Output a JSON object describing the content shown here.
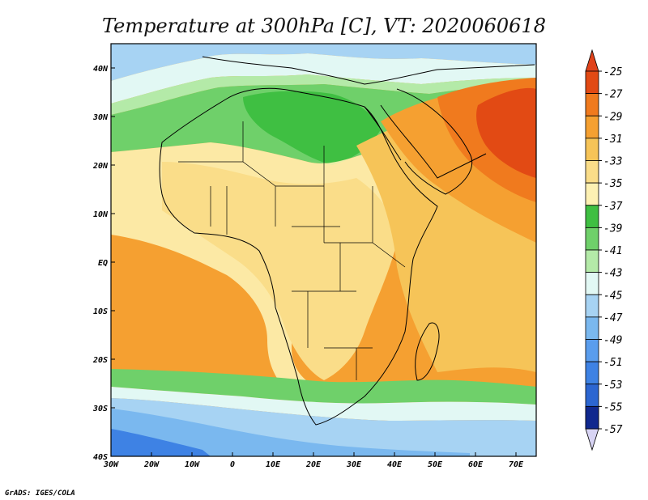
{
  "title": "Temperature at 300hPa [C], VT: 2020060618",
  "credit": "GrADS: IGES/COLA",
  "map": {
    "lon_range": [
      -30,
      75
    ],
    "lat_range": [
      -40,
      45
    ],
    "x_ticks": [
      {
        "value": -30,
        "label": "30W"
      },
      {
        "value": -20,
        "label": "20W"
      },
      {
        "value": -10,
        "label": "10W"
      },
      {
        "value": 0,
        "label": "0"
      },
      {
        "value": 10,
        "label": "10E"
      },
      {
        "value": 20,
        "label": "20E"
      },
      {
        "value": 30,
        "label": "30E"
      },
      {
        "value": 40,
        "label": "40E"
      },
      {
        "value": 50,
        "label": "50E"
      },
      {
        "value": 60,
        "label": "60E"
      },
      {
        "value": 70,
        "label": "70E"
      }
    ],
    "y_ticks": [
      {
        "value": 40,
        "label": "40N"
      },
      {
        "value": 30,
        "label": "30N"
      },
      {
        "value": 20,
        "label": "20N"
      },
      {
        "value": 10,
        "label": "10N"
      },
      {
        "value": 0,
        "label": "EQ"
      },
      {
        "value": -10,
        "label": "10S"
      },
      {
        "value": -20,
        "label": "20S"
      },
      {
        "value": -30,
        "label": "30S"
      },
      {
        "value": -40,
        "label": "40S"
      }
    ]
  },
  "colorbar": {
    "levels": [
      {
        "label": "-25",
        "color": "#e24a14"
      },
      {
        "label": "-27",
        "color": "#f07a1e"
      },
      {
        "label": "-29",
        "color": "#f5a031"
      },
      {
        "label": "-31",
        "color": "#f6c458"
      },
      {
        "label": "-33",
        "color": "#fadd89"
      },
      {
        "label": "-35",
        "color": "#fdf1b3"
      },
      {
        "label": "-37",
        "color": "#3fbf42"
      },
      {
        "label": "-39",
        "color": "#6fd06a"
      },
      {
        "label": "-41",
        "color": "#b4eaa8"
      },
      {
        "label": "-43",
        "color": "#e2f8f4"
      },
      {
        "label": "-45",
        "color": "#a7d3f3"
      },
      {
        "label": "-47",
        "color": "#7ab8ef"
      },
      {
        "label": "-49",
        "color": "#5a9ded"
      },
      {
        "label": "-51",
        "color": "#3e82e4"
      },
      {
        "label": "-53",
        "color": "#2c66d1"
      },
      {
        "label": "-55",
        "color": "#1e49b5"
      },
      {
        "label": "-57",
        "color": "#10288e"
      }
    ],
    "top_cap_color": "#e0421a",
    "bottom_cap_color": "#d8d4f4"
  }
}
